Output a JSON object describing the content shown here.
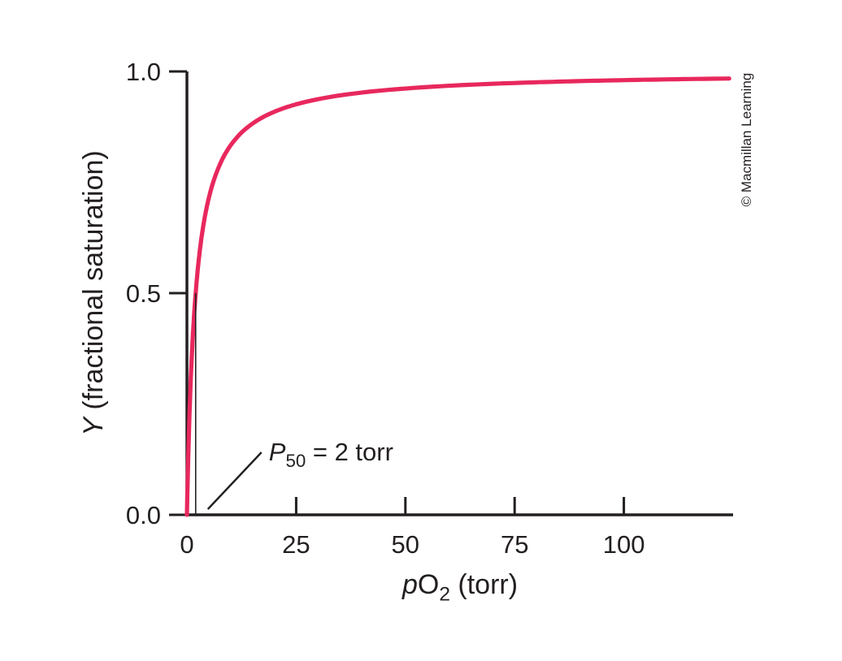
{
  "chart_data": {
    "type": "line",
    "title": "",
    "xlabel": "pO2 (torr)",
    "ylabel": "Y (fractional saturation)",
    "xlabel_parts": [
      {
        "t": "p",
        "style": "italic"
      },
      {
        "t": "O"
      },
      {
        "t": "2",
        "style": "sub"
      },
      {
        "t": " (torr)"
      }
    ],
    "ylabel_parts": [
      {
        "t": "Y",
        "style": "italic"
      },
      {
        "t": " (fractional saturation)"
      }
    ],
    "xlim": [
      0,
      125
    ],
    "ylim": [
      0,
      1.0
    ],
    "grid": false,
    "legend": null,
    "x_ticks": {
      "values": [
        0,
        25,
        50,
        75,
        100
      ],
      "labels": [
        "0",
        "25",
        "50",
        "75",
        "100"
      ]
    },
    "y_ticks": {
      "values": [
        0,
        0.5,
        1.0
      ],
      "labels": [
        "0.0",
        "0.5",
        "1.0"
      ]
    },
    "axis_color": "#231f20",
    "curve_color": "#e8285d",
    "series": [
      {
        "name": "fractional saturation vs pO2",
        "model": "Y = pO2 / (P50 + pO2)",
        "P50_torr": 2,
        "x": [
          0,
          1,
          2,
          3,
          5,
          10,
          20,
          25,
          50,
          75,
          100,
          120
        ],
        "y": [
          0,
          0.333,
          0.5,
          0.6,
          0.714,
          0.833,
          0.909,
          0.926,
          0.962,
          0.974,
          0.98,
          0.984
        ]
      }
    ],
    "annotation": {
      "text": "P50 = 2 torr",
      "parts": [
        {
          "t": "P",
          "style": "italic"
        },
        {
          "t": "50",
          "style": "sub"
        },
        {
          "t": " = 2 torr"
        }
      ],
      "x_torr": 2,
      "y_saturation": 0.5
    },
    "credit": "© Macmillan Learning"
  }
}
